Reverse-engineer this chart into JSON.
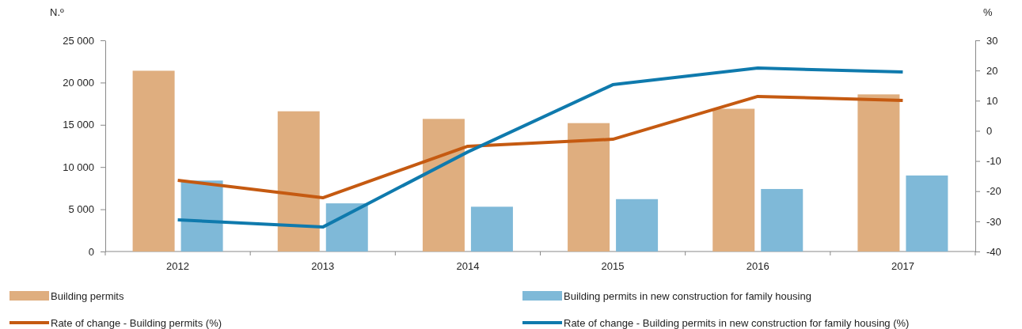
{
  "chart_data": {
    "type": "bar",
    "ylabel": "N.º",
    "y2label": "%",
    "categories": [
      "2012",
      "2013",
      "2014",
      "2015",
      "2016",
      "2017"
    ],
    "series": [
      {
        "name": "Building permits",
        "color": "#dfae7f",
        "values": [
          21400,
          16600,
          15700,
          15200,
          16900,
          18600
        ]
      },
      {
        "name": "Building permits in new construction for family housing",
        "color": "#7fb9d8",
        "values": [
          8400,
          5700,
          5300,
          6200,
          7400,
          9000
        ]
      },
      {
        "name": "Rate of change - Building permits (%)",
        "type": "line",
        "axis": "y2",
        "color": "#c55a11",
        "values": [
          -16.4,
          -22.2,
          -5.1,
          -2.8,
          11.4,
          10.1
        ]
      },
      {
        "name": "Rate of change - Building permits in new construction for family housing (%)",
        "type": "line",
        "axis": "y2",
        "color": "#0f7aad",
        "values": [
          -29.5,
          -31.9,
          -7.0,
          15.3,
          20.8,
          19.5
        ]
      }
    ],
    "ylim": [
      0,
      25000
    ],
    "yticks": [
      0,
      {
        "value": 5000,
        "label": "5 000"
      },
      {
        "value": 10000,
        "label": "10 000"
      },
      {
        "value": 15000,
        "label": "15 000"
      },
      {
        "value": 20000,
        "label": "20 000"
      },
      {
        "value": 25000,
        "label": "25 000"
      }
    ],
    "y2lim": [
      -40,
      30
    ],
    "y2ticks": [
      -40,
      -30,
      -20,
      -10,
      0,
      10,
      20,
      30
    ],
    "legend": "bottom",
    "grid": false,
    "marker": "none",
    "line_style": "solid"
  }
}
